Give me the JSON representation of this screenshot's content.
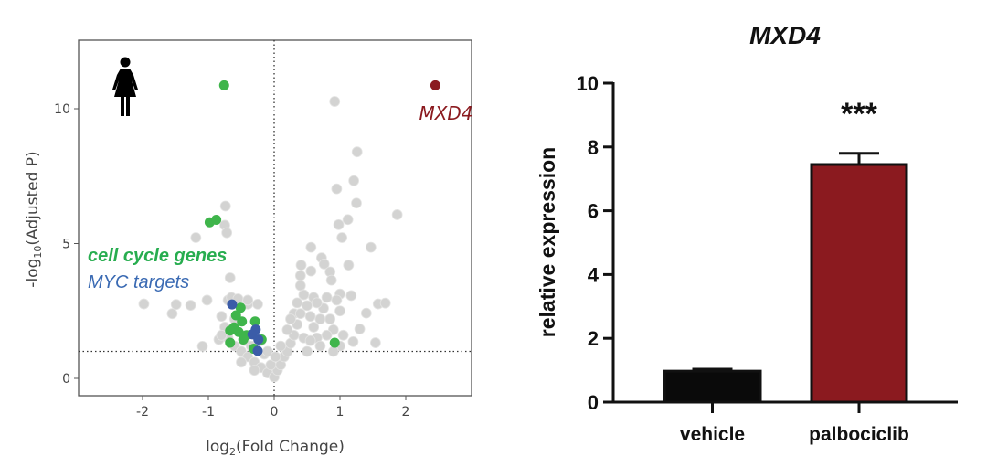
{
  "chart_data": [
    {
      "type": "scatter",
      "xlabel_main": "log",
      "xlabel_sub": "2",
      "xlabel_rest": "(Fold Change)",
      "ylabel_pre": "-log",
      "ylabel_sub": "10",
      "ylabel_rest": "(Adjusted P)",
      "xlim": [
        -2.9,
        2.9
      ],
      "ylim": [
        -0.6,
        12.6
      ],
      "x_ticks": [
        -2,
        -1,
        0,
        1,
        2
      ],
      "y_ticks": [
        0,
        5,
        10
      ],
      "x_tick_labels": [
        "-2",
        "-1",
        "0",
        "1",
        "2"
      ],
      "y_tick_labels": [
        "0",
        "5",
        "10"
      ],
      "threshold_y": 1,
      "threshold_x": 0,
      "icon": "woman-icon",
      "annotations": {
        "cell_cycle": "cell cycle genes",
        "myc": "MYC targets",
        "mxd4": "MXD4"
      },
      "colors": {
        "gray": "#d3d3d2",
        "green": "#3fb54b",
        "blue": "#3b5ca8",
        "red": "#8b1a1f",
        "green_text": "#27ad4f",
        "blue_text": "#3a6ab3"
      },
      "series": [
        {
          "group": "other",
          "points": [
            [
              0.92,
              10.27
            ],
            [
              1.26,
              8.4
            ],
            [
              1.21,
              7.33
            ],
            [
              0.95,
              7.03
            ],
            [
              1.25,
              6.5
            ],
            [
              1.87,
              6.07
            ],
            [
              1.12,
              5.89
            ],
            [
              0.98,
              5.7
            ],
            [
              1.03,
              5.22
            ],
            [
              1.47,
              4.86
            ],
            [
              0.56,
              4.86
            ],
            [
              0.72,
              4.47
            ],
            [
              0.76,
              4.24
            ],
            [
              1.13,
              4.2
            ],
            [
              0.41,
              4.2
            ],
            [
              0.56,
              3.98
            ],
            [
              0.85,
              3.95
            ],
            [
              0.4,
              3.81
            ],
            [
              0.87,
              3.64
            ],
            [
              0.4,
              3.44
            ],
            [
              -0.74,
              6.39
            ],
            [
              -0.75,
              5.68
            ],
            [
              -0.72,
              5.4
            ],
            [
              -1.19,
              5.22
            ],
            [
              -0.67,
              3.73
            ],
            [
              -1.98,
              2.76
            ],
            [
              -1.55,
              2.4
            ],
            [
              -1.49,
              2.74
            ],
            [
              -1.27,
              2.71
            ],
            [
              -1.02,
              2.9
            ],
            [
              -1.09,
              1.19
            ],
            [
              -0.84,
              1.44
            ],
            [
              1.58,
              2.76
            ],
            [
              1.69,
              2.79
            ],
            [
              1.4,
              2.42
            ],
            [
              1.3,
              1.83
            ],
            [
              1.54,
              1.32
            ],
            [
              1.2,
              1.36
            ],
            [
              1.17,
              3.07
            ],
            [
              1.0,
              3.13
            ],
            [
              -0.7,
              2.9
            ],
            [
              -0.65,
              3.0
            ],
            [
              -0.55,
              2.95
            ],
            [
              -0.4,
              2.75
            ],
            [
              -0.25,
              2.75
            ],
            [
              -0.8,
              2.3
            ],
            [
              -0.75,
              1.9
            ],
            [
              -0.7,
              1.5
            ],
            [
              -0.6,
              1.2
            ],
            [
              -0.5,
              1.0
            ],
            [
              -0.4,
              0.8
            ],
            [
              -0.3,
              0.6
            ],
            [
              -0.2,
              0.4
            ],
            [
              -0.1,
              0.2
            ],
            [
              0,
              0.05
            ],
            [
              0.05,
              0.3
            ],
            [
              -0.05,
              0.5
            ],
            [
              0.1,
              0.5
            ],
            [
              0.15,
              0.8
            ],
            [
              0.2,
              1.0
            ],
            [
              0.25,
              1.3
            ],
            [
              0.3,
              1.6
            ],
            [
              0.35,
              2.0
            ],
            [
              0.3,
              2.4
            ],
            [
              0.35,
              2.8
            ],
            [
              0.45,
              3.1
            ],
            [
              0.5,
              2.7
            ],
            [
              0.55,
              2.3
            ],
            [
              0.6,
              1.9
            ],
            [
              0.65,
              1.5
            ],
            [
              0.7,
              1.2
            ],
            [
              0.75,
              2.6
            ],
            [
              0.8,
              3.0
            ],
            [
              0.85,
              2.2
            ],
            [
              0.9,
              1.8
            ],
            [
              0.95,
              2.9
            ],
            [
              1.0,
              2.5
            ],
            [
              1.05,
              1.6
            ],
            [
              0.45,
              1.5
            ],
            [
              0.5,
              1.0
            ],
            [
              0.4,
              2.4
            ],
            [
              0.6,
              3.0
            ],
            [
              0.7,
              2.2
            ],
            [
              0.65,
              2.8
            ],
            [
              0.8,
              1.6
            ],
            [
              0.55,
              1.4
            ],
            [
              0.25,
              2.2
            ],
            [
              0.2,
              1.8
            ],
            [
              0.1,
              1.2
            ],
            [
              -0.15,
              0.9
            ],
            [
              -0.35,
              1.2
            ],
            [
              -0.45,
              1.4
            ],
            [
              -0.2,
              1.4
            ],
            [
              -0.1,
              1.0
            ],
            [
              0.02,
              0.8
            ],
            [
              1.0,
              1.2
            ],
            [
              0.9,
              1.0
            ],
            [
              -0.3,
              0.3
            ],
            [
              -0.5,
              0.6
            ],
            [
              -0.8,
              1.6
            ],
            [
              -0.4,
              2.9
            ],
            [
              -0.6,
              2.2
            ]
          ]
        },
        {
          "group": "cell cycle genes",
          "points": [
            [
              -0.76,
              10.87
            ],
            [
              -0.98,
              5.79
            ],
            [
              -0.88,
              5.88
            ],
            [
              0.92,
              1.32
            ],
            [
              -0.51,
              2.62
            ],
            [
              -0.58,
              2.34
            ],
            [
              -0.49,
              2.11
            ],
            [
              -0.61,
              1.89
            ],
            [
              -0.67,
              1.77
            ],
            [
              -0.54,
              1.72
            ],
            [
              -0.42,
              1.6
            ],
            [
              -0.67,
              1.32
            ],
            [
              -0.29,
              2.11
            ],
            [
              -0.19,
              1.44
            ],
            [
              -0.31,
              1.1
            ],
            [
              -0.47,
              1.44
            ]
          ]
        },
        {
          "group": "MYC targets",
          "points": [
            [
              -0.64,
              2.74
            ],
            [
              -0.28,
              1.81
            ],
            [
              -0.33,
              1.63
            ],
            [
              -0.24,
              1.44
            ],
            [
              -0.25,
              1.02
            ]
          ]
        },
        {
          "group": "MXD4",
          "points": [
            [
              2.45,
              10.87
            ]
          ]
        }
      ]
    },
    {
      "type": "bar",
      "title": "MXD4",
      "ylabel": "relative expression",
      "ylim": [
        0,
        10
      ],
      "y_ticks": [
        0,
        2,
        4,
        6,
        8,
        10
      ],
      "y_tick_labels": [
        "0",
        "2",
        "4",
        "6",
        "8",
        "10"
      ],
      "categories": [
        "vehicle",
        "palbociclib"
      ],
      "values": [
        0.97,
        7.45
      ],
      "error_upper": [
        1.03,
        7.8
      ],
      "colors": [
        "#0a0a0a",
        "#8b1a1f"
      ],
      "significance": [
        "",
        "***"
      ]
    }
  ]
}
